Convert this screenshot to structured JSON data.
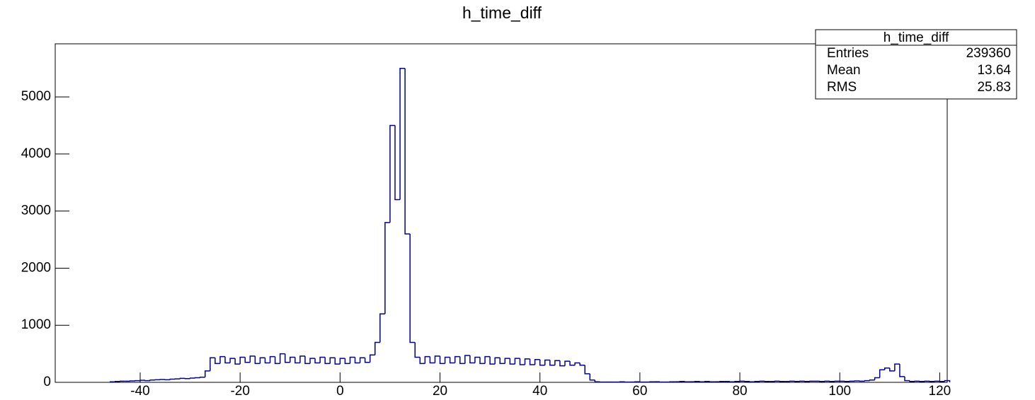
{
  "chart_data": {
    "type": "histogram",
    "title": "h_time_diff",
    "color": "#000099",
    "xlim": [
      -57,
      121.5
    ],
    "ylim": [
      0,
      5930
    ],
    "xticks": [
      -40,
      -20,
      0,
      20,
      40,
      60,
      80,
      100,
      120
    ],
    "yticks": [
      0,
      1000,
      2000,
      3000,
      4000,
      5000
    ],
    "bins": [
      -46,
      -45,
      -44,
      -43,
      -42,
      -41,
      -40,
      -39,
      -38,
      -37,
      -36,
      -35,
      -34,
      -33,
      -32,
      -31,
      -30,
      -29,
      -28,
      -27,
      -26,
      -25,
      -24,
      -23,
      -22,
      -21,
      -20,
      -19,
      -18,
      -17,
      -16,
      -15,
      -14,
      -13,
      -12,
      -11,
      -10,
      -9,
      -8,
      -7,
      -6,
      -5,
      -4,
      -3,
      -2,
      -1,
      0,
      1,
      2,
      3,
      4,
      5,
      6,
      7,
      8,
      9,
      10,
      11,
      12,
      13,
      14,
      15,
      16,
      17,
      18,
      19,
      20,
      21,
      22,
      23,
      24,
      25,
      26,
      27,
      28,
      29,
      30,
      31,
      32,
      33,
      34,
      35,
      36,
      37,
      38,
      39,
      40,
      41,
      42,
      43,
      44,
      45,
      46,
      47,
      48,
      49,
      50,
      51,
      52,
      53,
      54,
      55,
      56,
      57,
      58,
      59,
      60,
      61,
      62,
      63,
      64,
      65,
      66,
      67,
      68,
      69,
      70,
      71,
      72,
      73,
      74,
      75,
      76,
      77,
      78,
      79,
      80,
      81,
      82,
      83,
      84,
      85,
      86,
      87,
      88,
      89,
      90,
      91,
      92,
      93,
      94,
      95,
      96,
      97,
      98,
      99,
      100,
      101,
      102,
      103,
      104,
      105,
      106,
      107,
      108,
      109,
      110,
      111,
      112,
      113,
      114,
      115,
      116,
      117,
      118,
      119,
      120,
      121,
      122
    ],
    "counts": [
      10,
      15,
      20,
      20,
      25,
      30,
      35,
      30,
      40,
      45,
      50,
      45,
      55,
      60,
      70,
      65,
      75,
      80,
      90,
      200,
      430,
      330,
      450,
      340,
      420,
      320,
      440,
      350,
      460,
      330,
      430,
      340,
      450,
      330,
      500,
      350,
      440,
      340,
      460,
      330,
      420,
      340,
      440,
      330,
      430,
      320,
      420,
      330,
      440,
      340,
      430,
      350,
      480,
      700,
      1200,
      2800,
      4500,
      3200,
      5500,
      2600,
      700,
      440,
      330,
      450,
      340,
      460,
      330,
      440,
      340,
      450,
      330,
      470,
      340,
      440,
      330,
      450,
      320,
      430,
      330,
      420,
      320,
      420,
      310,
      410,
      310,
      400,
      300,
      390,
      300,
      380,
      290,
      370,
      300,
      340,
      300,
      150,
      40,
      10,
      5,
      5,
      5,
      5,
      10,
      5,
      5,
      10,
      5,
      5,
      10,
      10,
      5,
      5,
      10,
      10,
      15,
      10,
      10,
      15,
      10,
      15,
      10,
      10,
      15,
      15,
      10,
      15,
      20,
      15,
      10,
      15,
      20,
      15,
      15,
      20,
      15,
      15,
      20,
      15,
      20,
      15,
      20,
      20,
      15,
      20,
      15,
      20,
      20,
      15,
      20,
      25,
      20,
      30,
      40,
      80,
      220,
      250,
      200,
      320,
      100,
      30,
      15,
      20,
      15,
      20,
      15,
      20,
      15,
      30
    ],
    "stats_box": {
      "title": "h_time_diff",
      "rows": [
        {
          "label": "Entries",
          "value": 239360
        },
        {
          "label": "Mean",
          "value": 13.64
        },
        {
          "label": "RMS",
          "value": 25.83
        }
      ]
    }
  }
}
